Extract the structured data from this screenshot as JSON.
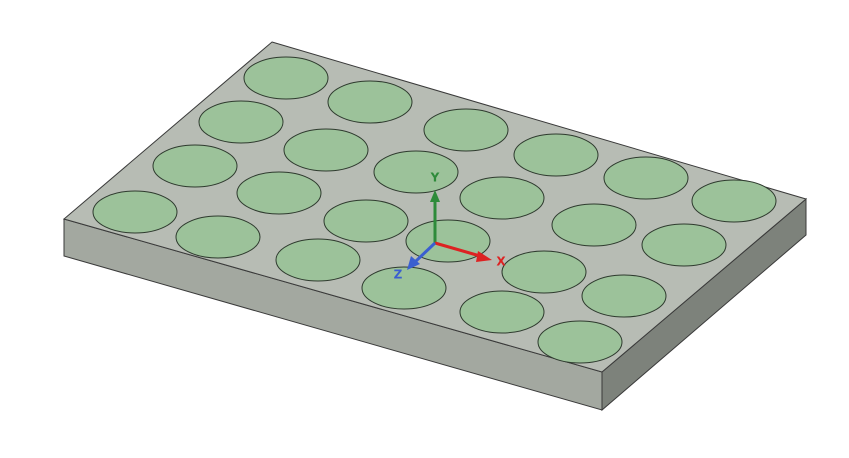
{
  "triad": {
    "x_label": "X",
    "y_label": "Y",
    "z_label": "Z"
  }
}
